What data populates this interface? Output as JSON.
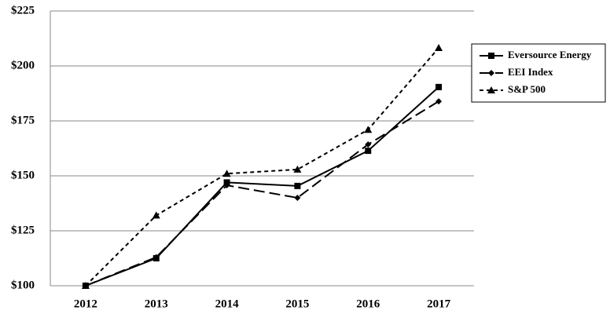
{
  "chart_data": {
    "type": "line",
    "categories": [
      "2012",
      "2013",
      "2014",
      "2015",
      "2016",
      "2017"
    ],
    "series": [
      {
        "name": "Eversource Energy",
        "color": "#000000",
        "dash": "solid",
        "marker": "square",
        "values": [
          100,
          112.5,
          147,
          145.4,
          161.4,
          190.4
        ]
      },
      {
        "name": "EEI Index",
        "color": "#000000",
        "dash": "long",
        "marker": "diamond",
        "values": [
          100,
          113,
          145.7,
          140,
          164.3,
          183.9
        ]
      },
      {
        "name": "S&P 500",
        "color": "#000000",
        "dash": "short",
        "marker": "triangle",
        "values": [
          100,
          132,
          151,
          152.9,
          171,
          208.2
        ]
      }
    ],
    "ylim": [
      100,
      225
    ],
    "yticks": [
      {
        "value": 100,
        "label": "$100"
      },
      {
        "value": 125,
        "label": "$125"
      },
      {
        "value": 150,
        "label": "$150"
      },
      {
        "value": 175,
        "label": "$175"
      },
      {
        "value": 200,
        "label": "$200"
      },
      {
        "value": 225,
        "label": "$225"
      }
    ],
    "grid": true,
    "legend": "right"
  }
}
